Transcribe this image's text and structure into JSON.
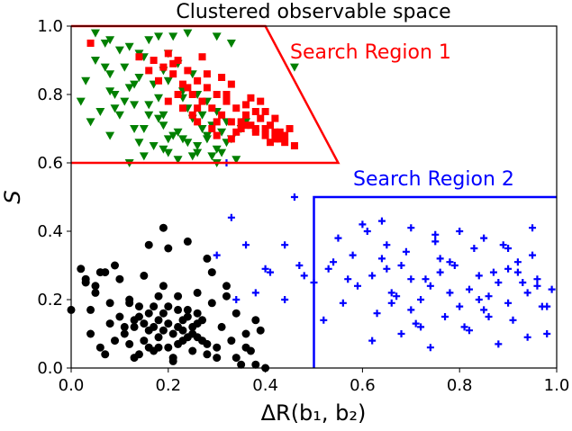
{
  "chart_data": {
    "type": "scatter",
    "title": "Clustered observable space",
    "xlabel": "ΔR(b₁, b₂)",
    "ylabel": "S",
    "xlim": [
      0.0,
      1.0
    ],
    "ylim": [
      0.0,
      1.0
    ],
    "x_ticks": [
      "0.0",
      "0.2",
      "0.4",
      "0.6",
      "0.8",
      "1.0"
    ],
    "y_ticks": [
      "0.0",
      "0.2",
      "0.4",
      "0.6",
      "0.8",
      "1.0"
    ],
    "grid": false,
    "series": [
      {
        "color": "#008000",
        "marker": "triangle-down",
        "x": [
          0.02,
          0.03,
          0.05,
          0.07,
          0.08,
          0.09,
          0.04,
          0.06,
          0.1,
          0.11,
          0.12,
          0.13,
          0.14,
          0.15,
          0.16,
          0.17,
          0.18,
          0.19,
          0.2,
          0.21,
          0.22,
          0.23,
          0.24,
          0.25,
          0.26,
          0.27,
          0.28,
          0.29,
          0.3,
          0.31,
          0.32,
          0.33,
          0.05,
          0.08,
          0.12,
          0.15,
          0.18,
          0.21,
          0.24,
          0.27,
          0.3,
          0.1,
          0.14,
          0.17,
          0.2,
          0.23,
          0.26,
          0.29,
          0.32,
          0.35,
          0.08,
          0.11,
          0.16,
          0.19,
          0.22,
          0.25,
          0.28,
          0.31,
          0.34,
          0.07,
          0.13,
          0.19,
          0.25,
          0.3,
          0.12,
          0.2,
          0.28,
          0.36,
          0.09,
          0.15,
          0.22,
          0.26,
          0.14,
          0.18,
          0.24,
          0.3,
          0.33,
          0.46,
          0.08,
          0.16,
          0.2,
          0.13,
          0.19,
          0.23
        ],
        "y": [
          0.78,
          0.84,
          0.9,
          0.95,
          0.86,
          0.8,
          0.72,
          0.75,
          0.93,
          0.88,
          0.82,
          0.77,
          0.85,
          0.91,
          0.96,
          0.83,
          0.79,
          0.87,
          0.92,
          0.97,
          0.89,
          0.81,
          0.76,
          0.86,
          0.8,
          0.74,
          0.78,
          0.71,
          0.75,
          0.69,
          0.72,
          0.67,
          0.98,
          0.96,
          0.94,
          0.7,
          0.73,
          0.68,
          0.66,
          0.7,
          0.64,
          0.74,
          0.66,
          0.65,
          0.63,
          0.67,
          0.65,
          0.62,
          0.66,
          0.7,
          0.81,
          0.78,
          0.74,
          0.71,
          0.69,
          0.73,
          0.67,
          0.63,
          0.61,
          0.88,
          0.7,
          0.64,
          0.62,
          0.6,
          0.6,
          0.67,
          0.68,
          0.72,
          0.76,
          0.62,
          0.61,
          0.63,
          0.92,
          0.97,
          0.98,
          0.97,
          0.95,
          0.88,
          0.68,
          0.77,
          0.84,
          0.83,
          0.74,
          0.79
        ]
      },
      {
        "color": "#ff0000",
        "marker": "square",
        "x": [
          0.04,
          0.14,
          0.17,
          0.19,
          0.2,
          0.21,
          0.22,
          0.23,
          0.24,
          0.25,
          0.26,
          0.27,
          0.28,
          0.29,
          0.3,
          0.31,
          0.32,
          0.33,
          0.34,
          0.35,
          0.36,
          0.37,
          0.38,
          0.39,
          0.4,
          0.41,
          0.42,
          0.43,
          0.44,
          0.45,
          0.46,
          0.18,
          0.22,
          0.26,
          0.3,
          0.34,
          0.38,
          0.42,
          0.24,
          0.28,
          0.32,
          0.36,
          0.4,
          0.44,
          0.2,
          0.25,
          0.29,
          0.33,
          0.37,
          0.41,
          0.21,
          0.27,
          0.31,
          0.35,
          0.39,
          0.43,
          0.23,
          0.3,
          0.36,
          0.4,
          0.16,
          0.26,
          0.33,
          0.38,
          0.42
        ],
        "y": [
          0.95,
          0.91,
          0.9,
          0.88,
          0.92,
          0.86,
          0.9,
          0.83,
          0.87,
          0.8,
          0.84,
          0.78,
          0.82,
          0.76,
          0.8,
          0.74,
          0.78,
          0.72,
          0.76,
          0.7,
          0.74,
          0.71,
          0.69,
          0.73,
          0.68,
          0.71,
          0.67,
          0.69,
          0.66,
          0.7,
          0.65,
          0.84,
          0.8,
          0.76,
          0.72,
          0.69,
          0.75,
          0.73,
          0.82,
          0.86,
          0.8,
          0.77,
          0.7,
          0.68,
          0.78,
          0.74,
          0.7,
          0.67,
          0.79,
          0.66,
          0.89,
          0.91,
          0.85,
          0.72,
          0.78,
          0.67,
          0.76,
          0.68,
          0.71,
          0.75,
          0.87,
          0.72,
          0.83,
          0.7,
          0.69
        ]
      },
      {
        "color": "#0000ff",
        "marker": "plus",
        "x": [
          0.32,
          0.33,
          0.3,
          0.34,
          0.38,
          0.41,
          0.44,
          0.47,
          0.5,
          0.53,
          0.56,
          0.59,
          0.62,
          0.64,
          0.66,
          0.68,
          0.7,
          0.72,
          0.74,
          0.76,
          0.78,
          0.8,
          0.82,
          0.84,
          0.86,
          0.88,
          0.9,
          0.92,
          0.94,
          0.96,
          0.98,
          0.52,
          0.55,
          0.58,
          0.61,
          0.63,
          0.65,
          0.67,
          0.69,
          0.71,
          0.73,
          0.75,
          0.77,
          0.79,
          0.81,
          0.83,
          0.85,
          0.87,
          0.89,
          0.91,
          0.93,
          0.95,
          0.97,
          0.99,
          0.6,
          0.65,
          0.7,
          0.75,
          0.8,
          0.85,
          0.9,
          0.95,
          0.62,
          0.68,
          0.74,
          0.82,
          0.88,
          0.94,
          0.66,
          0.72,
          0.78,
          0.86,
          0.92,
          0.98,
          0.54,
          0.57,
          0.64,
          0.7,
          0.76,
          0.84,
          0.9,
          0.96,
          0.46,
          0.4,
          0.36,
          0.44,
          0.48
        ],
        "y": [
          0.6,
          0.44,
          0.33,
          0.2,
          0.22,
          0.28,
          0.36,
          0.3,
          0.25,
          0.29,
          0.19,
          0.24,
          0.27,
          0.32,
          0.22,
          0.3,
          0.26,
          0.2,
          0.24,
          0.28,
          0.31,
          0.18,
          0.23,
          0.27,
          0.21,
          0.25,
          0.19,
          0.28,
          0.22,
          0.26,
          0.18,
          0.14,
          0.38,
          0.33,
          0.4,
          0.16,
          0.29,
          0.21,
          0.34,
          0.13,
          0.26,
          0.37,
          0.15,
          0.3,
          0.12,
          0.35,
          0.17,
          0.28,
          0.36,
          0.14,
          0.25,
          0.33,
          0.18,
          0.23,
          0.42,
          0.36,
          0.41,
          0.39,
          0.4,
          0.38,
          0.35,
          0.41,
          0.08,
          0.1,
          0.06,
          0.11,
          0.07,
          0.09,
          0.19,
          0.12,
          0.22,
          0.15,
          0.31,
          0.1,
          0.31,
          0.26,
          0.43,
          0.17,
          0.32,
          0.2,
          0.29,
          0.24,
          0.5,
          0.29,
          0.36,
          0.2,
          0.27
        ]
      },
      {
        "color": "#000000",
        "marker": "circle",
        "x": [
          0.0,
          0.02,
          0.03,
          0.04,
          0.05,
          0.06,
          0.07,
          0.08,
          0.09,
          0.1,
          0.11,
          0.12,
          0.13,
          0.14,
          0.15,
          0.16,
          0.17,
          0.18,
          0.19,
          0.2,
          0.21,
          0.22,
          0.23,
          0.24,
          0.25,
          0.26,
          0.27,
          0.28,
          0.29,
          0.3,
          0.31,
          0.32,
          0.33,
          0.34,
          0.35,
          0.36,
          0.37,
          0.38,
          0.39,
          0.4,
          0.1,
          0.12,
          0.14,
          0.16,
          0.18,
          0.2,
          0.22,
          0.24,
          0.26,
          0.28,
          0.11,
          0.13,
          0.15,
          0.17,
          0.19,
          0.21,
          0.23,
          0.25,
          0.27,
          0.12,
          0.14,
          0.16,
          0.18,
          0.2,
          0.22,
          0.24,
          0.26,
          0.15,
          0.17,
          0.19,
          0.21,
          0.23,
          0.25,
          0.13,
          0.18,
          0.22,
          0.26,
          0.3,
          0.08,
          0.06,
          0.04,
          0.2,
          0.19,
          0.24,
          0.28,
          0.34,
          0.36,
          0.38,
          0.16,
          0.09,
          0.07,
          0.03,
          0.05,
          0.29,
          0.32
        ],
        "y": [
          0.17,
          0.29,
          0.25,
          0.1,
          0.22,
          0.28,
          0.04,
          0.19,
          0.08,
          0.26,
          0.12,
          0.2,
          0.03,
          0.15,
          0.27,
          0.06,
          0.18,
          0.09,
          0.24,
          0.13,
          0.02,
          0.21,
          0.11,
          0.17,
          0.05,
          0.22,
          0.14,
          0.07,
          0.19,
          0.03,
          0.12,
          0.24,
          0.08,
          0.16,
          0.01,
          0.1,
          0.05,
          0.14,
          0.11,
          0.0,
          0.15,
          0.07,
          0.18,
          0.11,
          0.21,
          0.06,
          0.17,
          0.09,
          0.13,
          0.04,
          0.1,
          0.14,
          0.08,
          0.12,
          0.16,
          0.1,
          0.14,
          0.12,
          0.08,
          0.19,
          0.04,
          0.16,
          0.06,
          0.18,
          0.07,
          0.15,
          0.09,
          0.13,
          0.05,
          0.11,
          0.03,
          0.08,
          0.1,
          0.12,
          0.14,
          0.12,
          0.16,
          0.06,
          0.13,
          0.06,
          0.17,
          0.35,
          0.41,
          0.37,
          0.32,
          0.03,
          0.06,
          0.01,
          0.36,
          0.3,
          0.28,
          0.26,
          0.24,
          0.28,
          0.21
        ]
      }
    ],
    "regions": [
      {
        "label": "Search Region 1",
        "color": "#ff0000",
        "polygon": [
          [
            0.0,
            1.0
          ],
          [
            0.4,
            1.0
          ],
          [
            0.55,
            0.6
          ],
          [
            0.0,
            0.6
          ]
        ]
      },
      {
        "label": "Search Region 2",
        "color": "#0000ff",
        "polygon": [
          [
            0.5,
            0.0
          ],
          [
            0.5,
            0.5
          ],
          [
            1.0,
            0.5
          ]
        ]
      }
    ]
  }
}
